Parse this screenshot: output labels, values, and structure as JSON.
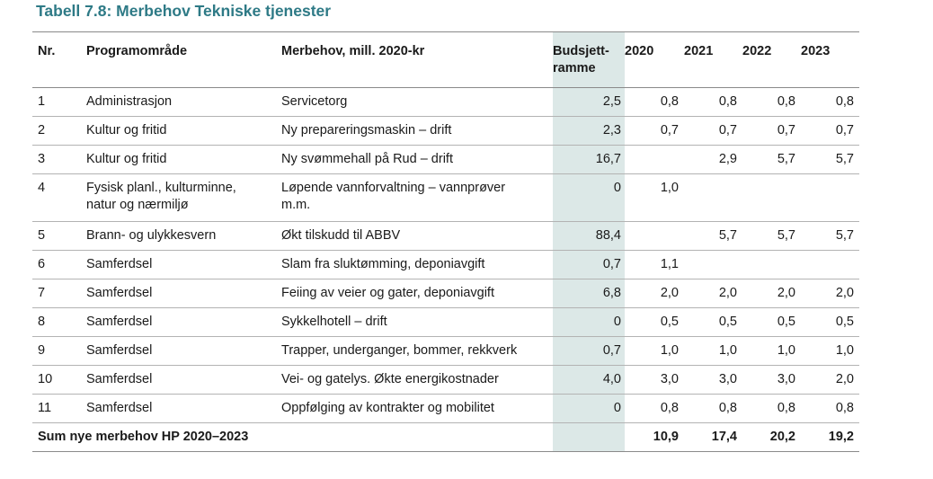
{
  "title": "Tabell 7.8: Merbehov Tekniske tjenester",
  "colors": {
    "title": "#2e7a86",
    "budget_column_bg": "#dce8e7"
  },
  "headers": {
    "nr": "Nr.",
    "area": "Programområde",
    "need": "Merbehov, mill. 2020-kr",
    "budget_line1": "Budsjett-",
    "budget_line2": "ramme",
    "y2020": "2020",
    "y2021": "2021",
    "y2022": "2022",
    "y2023": "2023"
  },
  "rows": [
    {
      "nr": "1",
      "area": "Administrasjon",
      "need": "Servicetorg",
      "budget": "2,5",
      "y2020": "0,8",
      "y2021": "0,8",
      "y2022": "0,8",
      "y2023": "0,8"
    },
    {
      "nr": "2",
      "area": "Kultur og fritid",
      "need": "Ny prepareringsmaskin – drift",
      "budget": "2,3",
      "y2020": "0,7",
      "y2021": "0,7",
      "y2022": "0,7",
      "y2023": "0,7"
    },
    {
      "nr": "3",
      "area": "Kultur og fritid",
      "need": "Ny svømmehall på Rud – drift",
      "budget": "16,7",
      "y2020": "",
      "y2021": "2,9",
      "y2022": "5,7",
      "y2023": "5,7"
    },
    {
      "nr": "4",
      "area_line1": "Fysisk planl., kulturminne,",
      "area_line2": "natur og nærmiljø",
      "need_line1": "Løpende vannforvaltning – vannprøver",
      "need_line2": "m.m.",
      "budget": "0",
      "y2020": "1,0",
      "y2021": "",
      "y2022": "",
      "y2023": ""
    },
    {
      "nr": "5",
      "area": "Brann- og ulykkesvern",
      "need": "Økt tilskudd til ABBV",
      "budget": "88,4",
      "y2020": "",
      "y2021": "5,7",
      "y2022": "5,7",
      "y2023": "5,7"
    },
    {
      "nr": "6",
      "area": "Samferdsel",
      "need": "Slam fra sluktømming, deponiavgift",
      "budget": "0,7",
      "y2020": "1,1",
      "y2021": "",
      "y2022": "",
      "y2023": ""
    },
    {
      "nr": "7",
      "area": "Samferdsel",
      "need": "Feiing av veier og gater, deponiavgift",
      "budget": "6,8",
      "y2020": "2,0",
      "y2021": "2,0",
      "y2022": "2,0",
      "y2023": "2,0"
    },
    {
      "nr": "8",
      "area": "Samferdsel",
      "need": "Sykkelhotell – drift",
      "budget": "0",
      "y2020": "0,5",
      "y2021": "0,5",
      "y2022": "0,5",
      "y2023": "0,5"
    },
    {
      "nr": "9",
      "area": "Samferdsel",
      "need": "Trapper, underganger, bommer, rekkverk",
      "budget": "0,7",
      "y2020": "1,0",
      "y2021": "1,0",
      "y2022": "1,0",
      "y2023": "1,0"
    },
    {
      "nr": "10",
      "area": "Samferdsel",
      "need": "Vei- og gatelys. Økte energikostnader",
      "budget": "4,0",
      "y2020": "3,0",
      "y2021": "3,0",
      "y2022": "3,0",
      "y2023": "2,0"
    },
    {
      "nr": "11",
      "area": "Samferdsel",
      "need": "Oppfølging av kontrakter og mobilitet",
      "budget": "0",
      "y2020": "0,8",
      "y2021": "0,8",
      "y2022": "0,8",
      "y2023": "0,8"
    }
  ],
  "sum": {
    "label": "Sum nye merbehov HP 2020–2023",
    "y2020": "10,9",
    "y2021": "17,4",
    "y2022": "20,2",
    "y2023": "19,2"
  }
}
